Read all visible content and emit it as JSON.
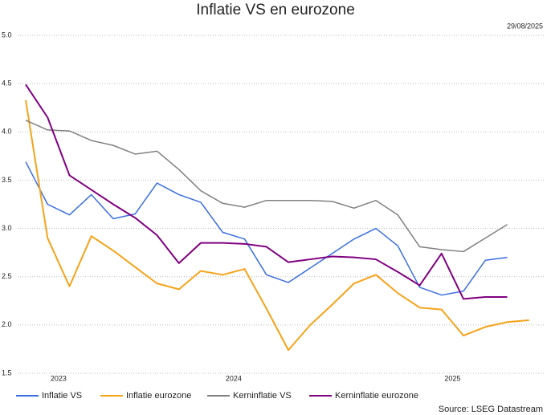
{
  "chart_data": {
    "type": "line",
    "title": "Inflatie VS en eurozone",
    "date": "29/08/2025",
    "source": "Source: LSEG Datastream",
    "x": [
      0,
      1,
      2,
      3,
      4,
      5,
      6,
      7,
      8,
      9,
      10,
      11,
      12,
      13,
      14,
      15,
      16,
      17,
      18,
      19,
      20,
      21,
      22,
      23
    ],
    "xticks": [
      {
        "value": 1.5,
        "label": "2023"
      },
      {
        "value": 9.5,
        "label": "2024"
      },
      {
        "value": 19.5,
        "label": "2025"
      }
    ],
    "ylim": [
      1.5,
      5.0
    ],
    "yticks": [
      {
        "value": 1.5,
        "label": "1.5"
      },
      {
        "value": 2.0,
        "label": "2.0"
      },
      {
        "value": 2.5,
        "label": "2.5"
      },
      {
        "value": 3.0,
        "label": "3.0"
      },
      {
        "value": 3.5,
        "label": "3.5"
      },
      {
        "value": 4.0,
        "label": "4.0"
      },
      {
        "value": 4.5,
        "label": "4.5"
      },
      {
        "value": 5.0,
        "label": "5.0"
      }
    ],
    "grid": true,
    "legend": "bottom",
    "series": [
      {
        "name": "Inflatie VS",
        "color": "#3a6ee0",
        "values": [
          3.69,
          3.25,
          3.14,
          3.35,
          3.1,
          3.15,
          3.47,
          3.35,
          3.27,
          2.96,
          2.89,
          2.52,
          2.44,
          2.59,
          2.74,
          2.89,
          3.0,
          2.82,
          2.39,
          2.31,
          2.35,
          2.67,
          2.7,
          null
        ]
      },
      {
        "name": "Inflatie eurozone",
        "color": "#f5a31a",
        "values": [
          4.33,
          2.9,
          2.4,
          2.92,
          2.77,
          2.6,
          2.43,
          2.37,
          2.56,
          2.52,
          2.58,
          2.17,
          1.74,
          2.0,
          2.21,
          2.43,
          2.52,
          2.33,
          2.18,
          2.16,
          1.89,
          1.98,
          2.03,
          2.05
        ]
      },
      {
        "name": "Kerninflatie VS",
        "color": "#808080",
        "values": [
          4.12,
          4.02,
          4.01,
          3.91,
          3.86,
          3.77,
          3.8,
          3.61,
          3.39,
          3.26,
          3.22,
          3.29,
          3.29,
          3.29,
          3.28,
          3.21,
          3.29,
          3.14,
          2.81,
          2.78,
          2.76,
          2.9,
          3.04,
          null
        ]
      },
      {
        "name": "Kerninflatie eurozone",
        "color": "#800080",
        "values": [
          4.49,
          4.15,
          3.55,
          3.4,
          3.25,
          3.11,
          2.93,
          2.64,
          2.85,
          2.85,
          2.84,
          2.81,
          2.65,
          2.68,
          2.71,
          2.7,
          2.68,
          2.55,
          2.41,
          2.74,
          2.27,
          2.29,
          2.29,
          null
        ]
      }
    ]
  }
}
